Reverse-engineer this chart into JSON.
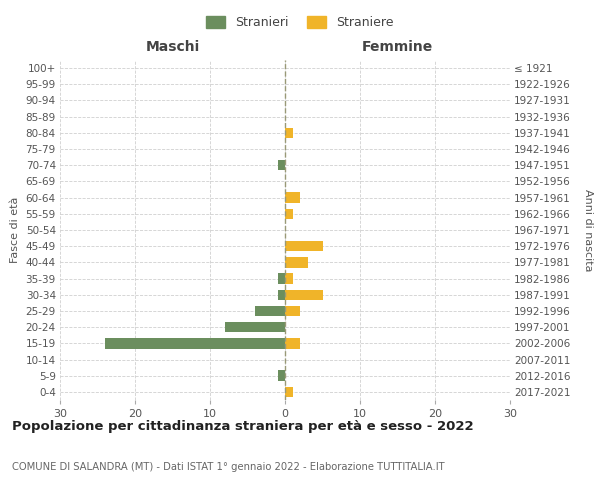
{
  "age_groups": [
    "0-4",
    "5-9",
    "10-14",
    "15-19",
    "20-24",
    "25-29",
    "30-34",
    "35-39",
    "40-44",
    "45-49",
    "50-54",
    "55-59",
    "60-64",
    "65-69",
    "70-74",
    "75-79",
    "80-84",
    "85-89",
    "90-94",
    "95-99",
    "100+"
  ],
  "birth_years": [
    "2017-2021",
    "2012-2016",
    "2007-2011",
    "2002-2006",
    "1997-2001",
    "1992-1996",
    "1987-1991",
    "1982-1986",
    "1977-1981",
    "1972-1976",
    "1967-1971",
    "1962-1966",
    "1957-1961",
    "1952-1956",
    "1947-1951",
    "1942-1946",
    "1937-1941",
    "1932-1936",
    "1927-1931",
    "1922-1926",
    "≤ 1921"
  ],
  "males": [
    0,
    -1,
    0,
    -24,
    -8,
    -4,
    -1,
    -1,
    0,
    0,
    0,
    0,
    0,
    0,
    -1,
    0,
    0,
    0,
    0,
    0,
    0
  ],
  "females": [
    1,
    0,
    0,
    2,
    0,
    2,
    5,
    1,
    3,
    5,
    0,
    1,
    2,
    0,
    0,
    0,
    1,
    0,
    0,
    0,
    0
  ],
  "male_color": "#6b8e5e",
  "female_color": "#f0b429",
  "grid_color": "#d0d0d0",
  "center_line_color": "#999977",
  "title_main": "Popolazione per cittadinanza straniera per età e sesso - 2022",
  "title_sub": "COMUNE DI SALANDRA (MT) - Dati ISTAT 1° gennaio 2022 - Elaborazione TUTTITALIA.IT",
  "legend_male": "Stranieri",
  "legend_female": "Straniere",
  "xlabel_left": "Maschi",
  "xlabel_right": "Femmine",
  "ylabel_left": "Fasce di età",
  "ylabel_right": "Anni di nascita",
  "xlim": 30,
  "background_color": "#ffffff"
}
